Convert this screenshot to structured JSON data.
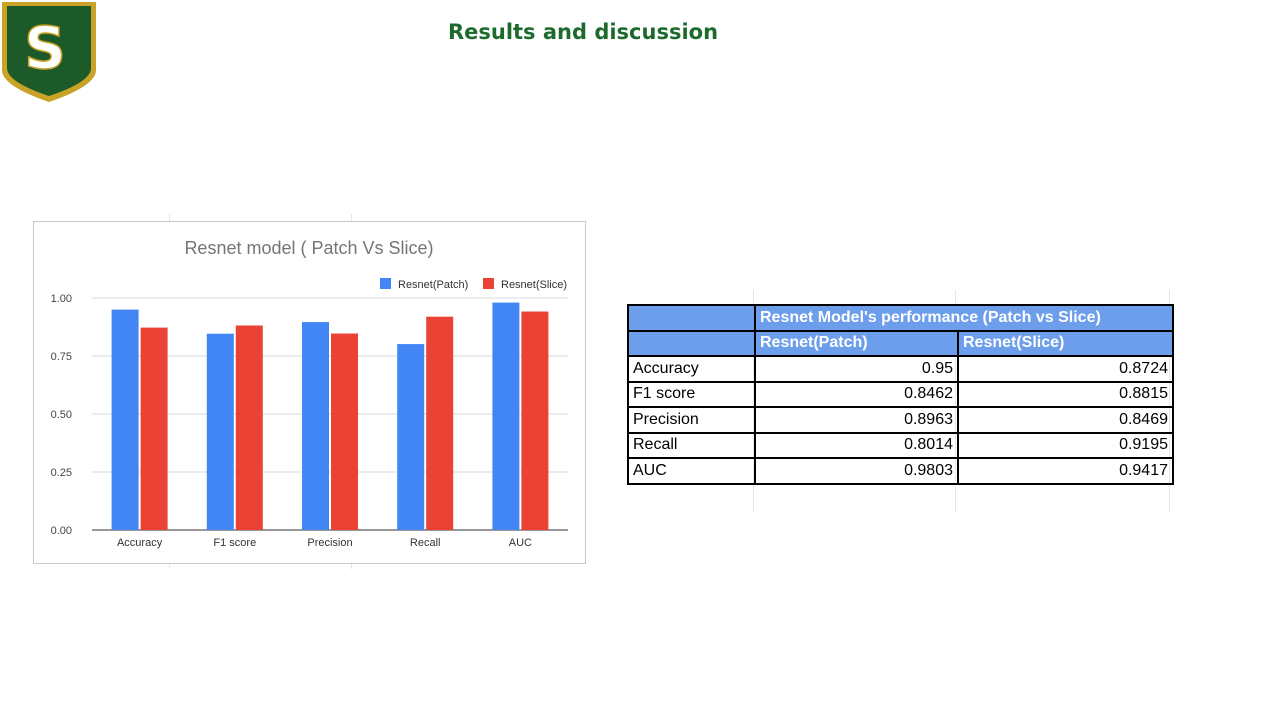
{
  "slide": {
    "title": "Results and discussion"
  },
  "logo": {
    "letter": "S",
    "colors": {
      "green": "#1d5a2a",
      "gold": "#c9a227",
      "white": "#ffffff"
    }
  },
  "chart_data": {
    "type": "bar",
    "title": "Resnet model ( Patch Vs Slice)",
    "xlabel": "",
    "ylabel": "",
    "categories": [
      "Accuracy",
      "F1 score",
      "Precision",
      "Recall",
      "AUC"
    ],
    "series": [
      {
        "name": "Resnet(Patch)",
        "color": "#4285f4",
        "values": [
          0.95,
          0.8462,
          0.8963,
          0.8014,
          0.9803
        ]
      },
      {
        "name": "Resnet(Slice)",
        "color": "#ea4335",
        "values": [
          0.8724,
          0.8815,
          0.8469,
          0.9195,
          0.9417
        ]
      }
    ],
    "yticks": [
      "0.00",
      "0.25",
      "0.50",
      "0.75",
      "1.00"
    ],
    "ylim": [
      0,
      1
    ],
    "grid": true,
    "legend": "top-right"
  },
  "table": {
    "title": "Resnet Model's performance (Patch vs Slice)",
    "headers": [
      "",
      "Resnet(Patch)",
      "Resnet(Slice)"
    ],
    "rows": [
      {
        "metric": "Accuracy",
        "patch": "0.95",
        "slice": "0.8724"
      },
      {
        "metric": "F1 score",
        "patch": "0.8462",
        "slice": "0.8815"
      },
      {
        "metric": "Precision",
        "patch": "0.8963",
        "slice": "0.8469"
      },
      {
        "metric": "Recall",
        "patch": "0.8014",
        "slice": "0.9195"
      },
      {
        "metric": "AUC",
        "patch": "0.9803",
        "slice": "0.9417"
      }
    ]
  }
}
